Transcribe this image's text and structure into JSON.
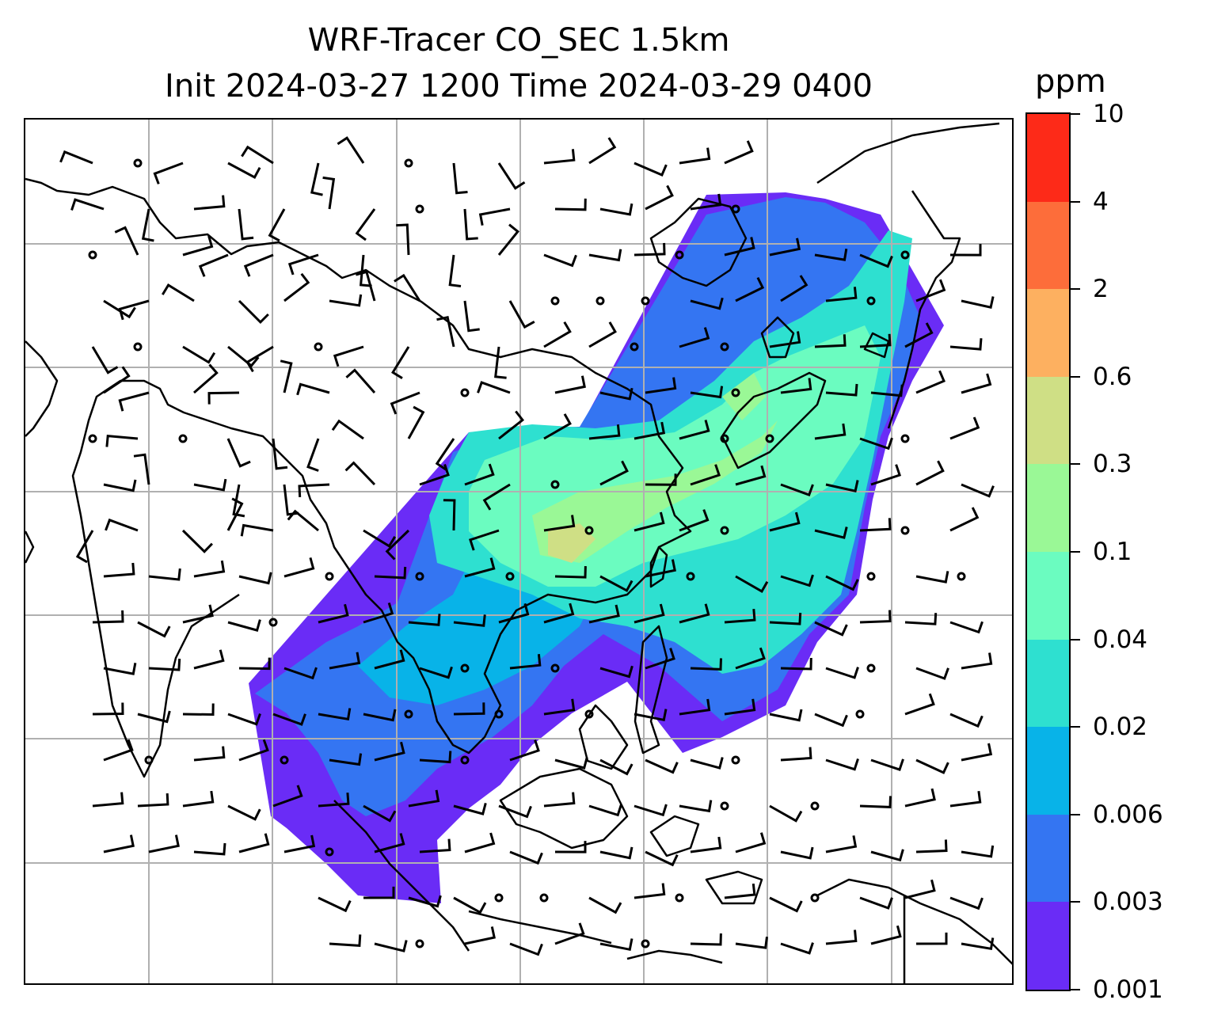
{
  "title": {
    "line1": "WRF-Tracer CO_SEC 1.5km",
    "line2": "Init 2024-03-27 1200 Time 2024-03-29 0400"
  },
  "colorbar": {
    "unit": "ppm",
    "tick_labels": [
      "0.001",
      "0.003",
      "0.006",
      "0.02",
      "0.04",
      "0.1",
      "0.3",
      "0.6",
      "2",
      "4",
      "10"
    ],
    "colors": [
      "#6a2cf6",
      "#3475f2",
      "#08b3e8",
      "#2ee0d0",
      "#6bfcc0",
      "#9af896",
      "#cfdf85",
      "#fdb060",
      "#fd6d3a",
      "#fd2a18"
    ]
  },
  "map": {
    "gridlines": true,
    "coastline_color": "#000000",
    "grid_color": "#b0b0b0",
    "overlay": "wind barbs"
  }
}
